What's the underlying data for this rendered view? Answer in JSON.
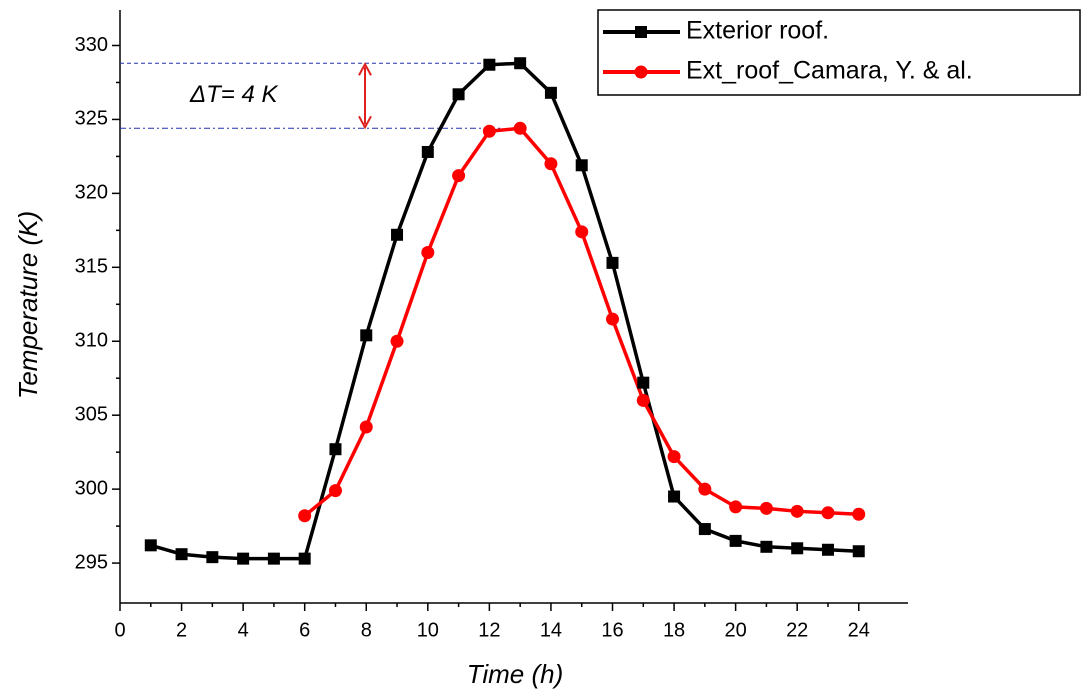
{
  "chart_data": {
    "type": "line",
    "x_label": "Time (h)",
    "y_label": "Temperature (K)",
    "x": [
      1,
      2,
      3,
      4,
      5,
      6,
      7,
      8,
      9,
      10,
      11,
      12,
      13,
      14,
      15,
      16,
      17,
      18,
      19,
      20,
      21,
      22,
      23,
      24
    ],
    "series": [
      {
        "name": "Exterior roof.",
        "color": "#000000",
        "marker": "square",
        "values": [
          296.2,
          295.6,
          295.4,
          295.3,
          295.3,
          295.3,
          302.7,
          310.4,
          317.2,
          322.8,
          326.7,
          328.7,
          328.8,
          326.8,
          321.9,
          315.3,
          307.2,
          299.5,
          297.3,
          296.5,
          296.1,
          296.0,
          295.9,
          295.8
        ]
      },
      {
        "name": "Ext_roof_Camara, Y. & al.",
        "color": "#ff0000",
        "marker": "circle",
        "values": [
          null,
          null,
          null,
          null,
          null,
          298.2,
          299.9,
          304.2,
          310.0,
          316.0,
          321.2,
          324.2,
          324.4,
          322.0,
          317.4,
          311.5,
          306.0,
          302.2,
          300.0,
          298.8,
          298.7,
          298.5,
          298.4,
          298.3
        ]
      }
    ],
    "annotation": "ΔT= 4 K",
    "xlim": [
      0,
      25.6
    ],
    "xticks": [
      0,
      2,
      4,
      6,
      8,
      10,
      12,
      14,
      16,
      18,
      20,
      22,
      24
    ],
    "ylim": [
      292.3,
      332.4
    ],
    "yticks": [
      295,
      300,
      305,
      310,
      315,
      320,
      325,
      330
    ],
    "legend": "upper right",
    "grid": false
  }
}
